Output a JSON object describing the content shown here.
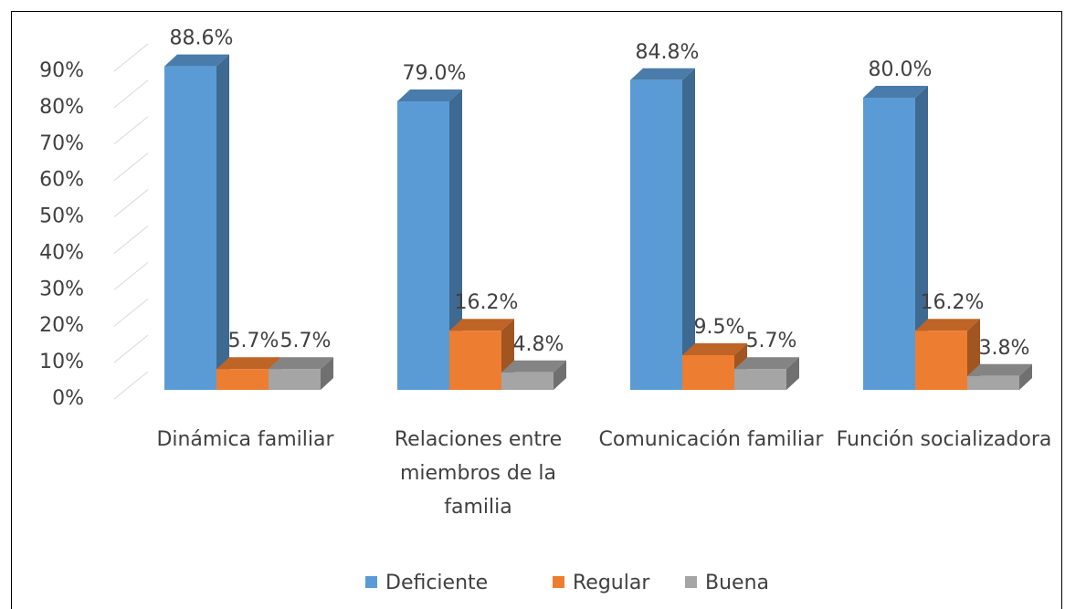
{
  "chart_data": {
    "type": "bar3d",
    "categories": [
      "Dinámica familiar",
      "Relaciones entre miembros de la familia",
      "Comunicación familiar",
      "Función socializadora"
    ],
    "series": [
      {
        "name": "Deficiente",
        "color": "#5b9bd5",
        "values": [
          88.6,
          79.0,
          84.8,
          80.0
        ],
        "value_labels": [
          "88.6%",
          "79.0%",
          "84.8%",
          "80.0%"
        ]
      },
      {
        "name": "Regular",
        "color": "#ed7d31",
        "values": [
          5.7,
          16.2,
          9.5,
          16.2
        ],
        "value_labels": [
          "5.7%",
          "16.2%",
          "9.5%",
          "16.2%"
        ]
      },
      {
        "name": "Buena",
        "color": "#a5a5a5",
        "values": [
          5.7,
          4.8,
          5.7,
          3.8
        ],
        "value_labels": [
          "5.7%",
          "4.8%",
          "5.7%",
          "3.8%"
        ]
      }
    ],
    "ylim": [
      0,
      90
    ],
    "yticks": [
      {
        "value": 0,
        "label": "0%"
      },
      {
        "value": 10,
        "label": "10%"
      },
      {
        "value": 20,
        "label": "20%"
      },
      {
        "value": 30,
        "label": "30%"
      },
      {
        "value": 40,
        "label": "40%"
      },
      {
        "value": 50,
        "label": "50%"
      },
      {
        "value": 60,
        "label": "60%"
      },
      {
        "value": 70,
        "label": "70%"
      },
      {
        "value": 80,
        "label": "80%"
      },
      {
        "value": 90,
        "label": "90%"
      }
    ],
    "grid": true,
    "legend": "bottom"
  }
}
